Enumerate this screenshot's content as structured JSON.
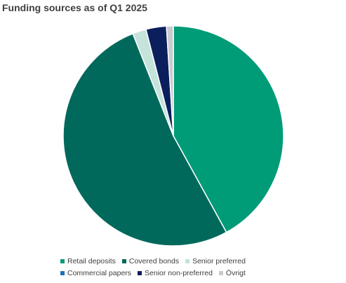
{
  "chart_data": {
    "type": "pie",
    "title": "Funding sources as of Q1 2025",
    "legend_position": "bottom",
    "slices": [
      {
        "name": "Retail deposits",
        "value": 42.0,
        "color": "#009B77"
      },
      {
        "name": "Covered bonds",
        "value": 52.0,
        "color": "#00695C"
      },
      {
        "name": "Senior preferred",
        "value": 2.0,
        "color": "#C5E3DA"
      },
      {
        "name": "Commercial papers",
        "value": 0.0,
        "color": "#1F6FB5"
      },
      {
        "name": "Senior non-preferred",
        "value": 3.0,
        "color": "#0A1F5C"
      },
      {
        "name": "Övrigt",
        "value": 1.0,
        "color": "#C9CBCE"
      }
    ]
  }
}
